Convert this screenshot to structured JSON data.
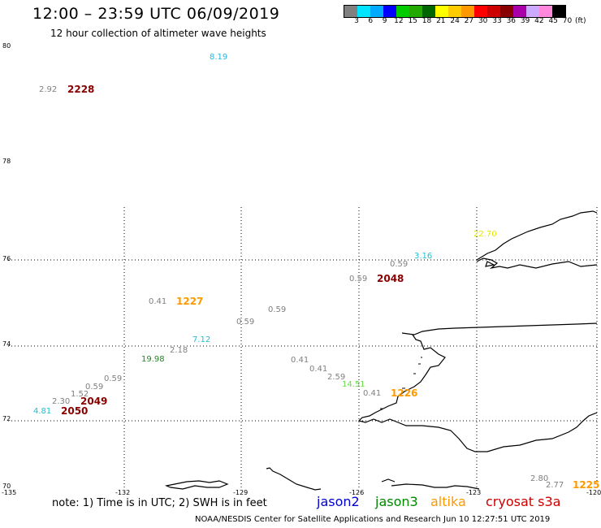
{
  "header": {
    "title": "12:00 – 23:59 UTC 06/09/2019",
    "subtitle": "12 hour collection of altimeter wave heights"
  },
  "legend": {
    "colors": [
      "#808080",
      "#00e5ff",
      "#00aaff",
      "#0000ff",
      "#00cc00",
      "#22aa00",
      "#006600",
      "#ffff00",
      "#ffcc00",
      "#ff9900",
      "#ff0000",
      "#cc0000",
      "#880000",
      "#aa00aa",
      "#ccaaff",
      "#ff88dd",
      "#000000"
    ],
    "labels": [
      "3",
      "6",
      "9",
      "12",
      "15",
      "18",
      "21",
      "24",
      "27",
      "30",
      "33",
      "36",
      "39",
      "42",
      "45",
      "70"
    ],
    "unit": "(ft)"
  },
  "axes": {
    "y_labels": [
      "80",
      "78",
      "76",
      "74",
      "72",
      "70"
    ],
    "x_labels": [
      "-135",
      "-132",
      "-129",
      "-126",
      "-123",
      "-120"
    ]
  },
  "observations": [
    {
      "text": "8.19",
      "color": "#20b8e0"
    },
    {
      "text": "2.92",
      "color": "#808080"
    },
    {
      "text": "2228",
      "color": "#880000"
    },
    {
      "text": "22.70",
      "color": "#e8e800"
    },
    {
      "text": "3.16",
      "color": "#20c0d0"
    },
    {
      "text": "0.59",
      "color": "#808080"
    },
    {
      "text": "0.59",
      "color": "#808080"
    },
    {
      "text": "2048",
      "color": "#880000"
    },
    {
      "text": "0.41",
      "color": "#808080"
    },
    {
      "text": "1227",
      "color": "#ff9900"
    },
    {
      "text": "0.59",
      "color": "#808080"
    },
    {
      "text": "0.59",
      "color": "#808080"
    },
    {
      "text": "7.12",
      "color": "#20c0d0"
    },
    {
      "text": "2.18",
      "color": "#808080"
    },
    {
      "text": "19.98",
      "color": "#228822"
    },
    {
      "text": "0.41",
      "color": "#808080"
    },
    {
      "text": "0.41",
      "color": "#808080"
    },
    {
      "text": "2.59",
      "color": "#808080"
    },
    {
      "text": "14.51",
      "color": "#66dd44"
    },
    {
      "text": "0.41",
      "color": "#808080"
    },
    {
      "text": "1226",
      "color": "#ff9900"
    },
    {
      "text": "0.59",
      "color": "#808080"
    },
    {
      "text": "0.59",
      "color": "#808080"
    },
    {
      "text": "1.52",
      "color": "#808080"
    },
    {
      "text": "2.30",
      "color": "#808080"
    },
    {
      "text": "2049",
      "color": "#880000"
    },
    {
      "text": "4.81",
      "color": "#20c0d0"
    },
    {
      "text": "2050",
      "color": "#880000"
    },
    {
      "text": "2.80",
      "color": "#808080"
    },
    {
      "text": "2.77",
      "color": "#808080"
    },
    {
      "text": "1225",
      "color": "#ff9900"
    }
  ],
  "footer": {
    "note": "note:  1) Time is in UTC;  2) SWH is in feet",
    "satellites": [
      {
        "name": "jason2",
        "color": "#0000cc"
      },
      {
        "name": "jason3",
        "color": "#008800"
      },
      {
        "name": "altika",
        "color": "#ff9900"
      },
      {
        "name": "cryosat s3a",
        "color": "#cc0000"
      }
    ],
    "credit": "NOAA/NESDIS Center for Satellite Applications and Research     Jun 10 12:27:51 UTC 2019"
  }
}
